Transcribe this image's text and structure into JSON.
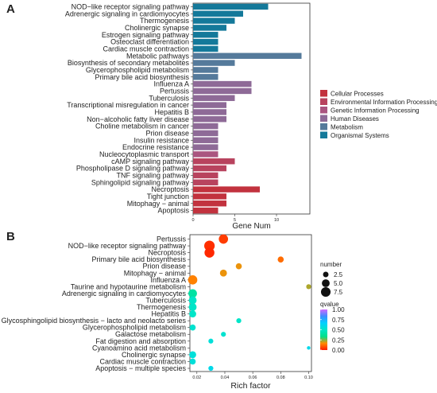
{
  "panel_labels": [
    "A",
    "B"
  ],
  "chart_data": [
    {
      "type": "bar",
      "orientation": "horizontal",
      "title": "",
      "xlabel": "Gene Num",
      "ylabel": "",
      "xlim": [
        0,
        14
      ],
      "x_ticks": [
        0,
        5,
        10
      ],
      "grid": false,
      "legend_placement": "right",
      "legend": [
        {
          "name": "Cellular Processes",
          "color": "#c2323e"
        },
        {
          "name": "Environmental Information Processing",
          "color": "#b8435e"
        },
        {
          "name": "Genetic Information Processing",
          "color": "#aa5580"
        },
        {
          "name": "Human Diseases",
          "color": "#8e6a97"
        },
        {
          "name": "Metabolism",
          "color": "#557a9b"
        },
        {
          "name": "Organismal Systems",
          "color": "#14799a"
        }
      ],
      "categories": [
        "NOD−like receptor signaling pathway",
        "Adrenergic signaling in cardiomyocytes",
        "Thermogenesis",
        "Cholinergic synapse",
        "Estrogen signaling pathway",
        "Osteoclast differentiation",
        "Cardiac muscle contraction",
        "Metabolic pathways",
        "Biosynthesis of secondary metabolites",
        "Glycerophospholipid metabolism",
        "Primary bile acid biosynthesis",
        "Influenza A",
        "Pertussis",
        "Tuberculosis",
        "Transcriptional misregulation in cancer",
        "Hepatitis B",
        "Non−alcoholic fatty liver disease",
        "Choline metabolism in cancer",
        "Prion disease",
        "Insulin resistance",
        "Endocrine resistance",
        "Nucleocytoplasmic transport",
        "cAMP signaling pathway",
        "Phospholipase D signaling pathway",
        "TNF signaling pathway",
        "Sphingolipid signaling pathway",
        "Necroptosis",
        "Tight junction",
        "Mitophagy − animal",
        "Apoptosis"
      ],
      "values": [
        9,
        6,
        5,
        4,
        3,
        3,
        3,
        13,
        5,
        3,
        3,
        7,
        7,
        5,
        4,
        4,
        4,
        3,
        3,
        3,
        3,
        3,
        5,
        4,
        3,
        3,
        8,
        4,
        4,
        3
      ],
      "groups": [
        "Organismal Systems",
        "Organismal Systems",
        "Organismal Systems",
        "Organismal Systems",
        "Organismal Systems",
        "Organismal Systems",
        "Organismal Systems",
        "Metabolism",
        "Metabolism",
        "Metabolism",
        "Metabolism",
        "Human Diseases",
        "Human Diseases",
        "Human Diseases",
        "Human Diseases",
        "Human Diseases",
        "Human Diseases",
        "Human Diseases",
        "Human Diseases",
        "Human Diseases",
        "Human Diseases",
        "Genetic Information Processing",
        "Environmental Information Processing",
        "Environmental Information Processing",
        "Environmental Information Processing",
        "Environmental Information Processing",
        "Cellular Processes",
        "Cellular Processes",
        "Cellular Processes",
        "Cellular Processes"
      ]
    },
    {
      "type": "scatter",
      "title": "",
      "xlabel": "Rich factor",
      "ylabel": "",
      "xlim": [
        0.015,
        0.102
      ],
      "x_ticks": [
        0.02,
        0.04,
        0.06,
        0.08,
        0.1
      ],
      "x_tick_labels": [
        "0.02",
        "0.04",
        "0.06",
        "0.08",
        "0.10"
      ],
      "grid": false,
      "size_legend": {
        "title": "number",
        "values": [
          2.5,
          5.0,
          7.5
        ],
        "labels": [
          "2.5",
          "5.0",
          "7.5"
        ]
      },
      "color_legend": {
        "title": "qvalue",
        "ticks": [
          1.0,
          0.75,
          0.5,
          0.25,
          0.0
        ],
        "tick_labels": [
          "1.00",
          "0.75",
          "0.50",
          "0.25",
          "0.00"
        ],
        "stops": [
          "#ff1a00",
          "#ff8c00",
          "#00e08a",
          "#00e5c8",
          "#00d0ff",
          "#3f8cff",
          "#d26bff"
        ]
      },
      "categories": [
        "Pertussis",
        "NOD−like receptor signaling pathway",
        "Necroptosis",
        "Primary bile acid biosynthesis",
        "Prion disease",
        "Mitophagy − animal",
        "Influenza A",
        "Taurine and hypotaurine metabolism",
        "Adrenergic signaling in cardiomyocytes",
        "Tuberculosis",
        "Thermogenesis",
        "Hepatitis B",
        "Glycosphingolipid biosynthesis − lacto and neolacto series",
        "Glycerophospholipid metabolism",
        "Galactose metabolism",
        "Fat digestion and absorption",
        "Cyanoamino acid metabolism",
        "Cholinergic synapse",
        "Cardiac muscle contraction",
        "Apoptosis − multiple species"
      ],
      "rich_factor": [
        0.039,
        0.029,
        0.029,
        0.08,
        0.05,
        0.039,
        0.017,
        0.1,
        0.017,
        0.017,
        0.017,
        0.017,
        0.05,
        0.017,
        0.039,
        0.03,
        0.1,
        0.017,
        0.017,
        0.03
      ],
      "number": [
        7,
        9,
        8,
        3,
        3,
        4,
        7,
        2,
        6,
        5,
        5,
        4,
        2,
        3,
        2,
        2,
        1,
        4,
        3,
        2
      ],
      "qvalue": [
        0.05,
        0.03,
        0.02,
        0.12,
        0.18,
        0.18,
        0.15,
        0.22,
        0.4,
        0.5,
        0.5,
        0.5,
        0.5,
        0.52,
        0.52,
        0.55,
        0.6,
        0.55,
        0.55,
        0.6
      ]
    }
  ]
}
